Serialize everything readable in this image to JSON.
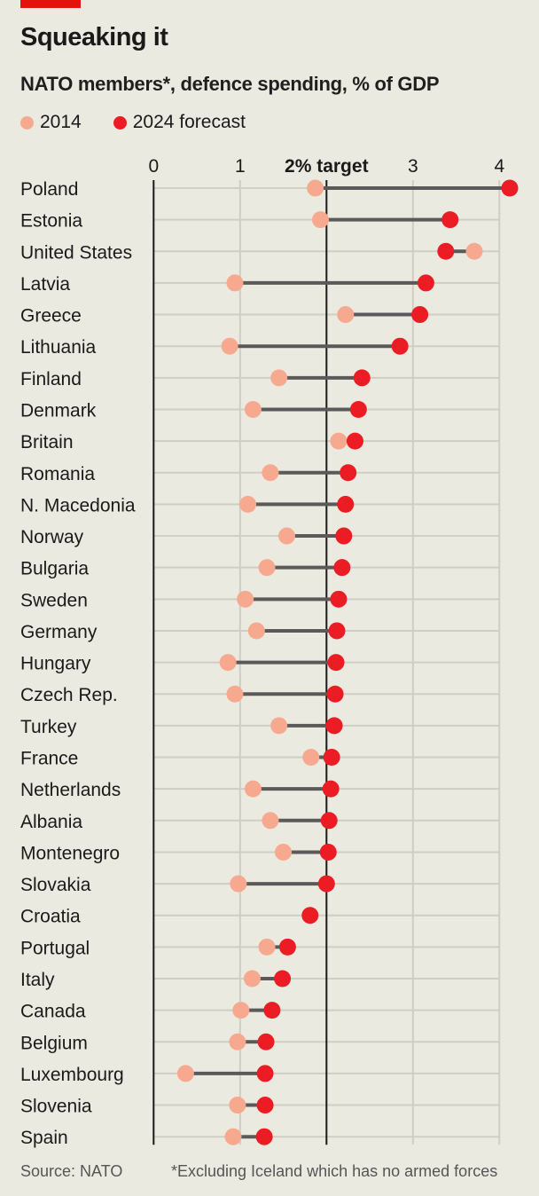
{
  "header": {
    "title": "Squeaking it",
    "subtitle": "NATO members*, defence spending, % of GDP"
  },
  "legend": [
    {
      "label": "2014",
      "color": "#f7a990"
    },
    {
      "label": "2024 forecast",
      "color": "#ec1c24"
    }
  ],
  "footer": {
    "source": "Source: NATO",
    "note": "*Excluding Iceland which has no armed forces"
  },
  "colors": {
    "background": "#ebeae1",
    "accent_bar": "#e3120b",
    "connector": "#5a5a5a",
    "grid": "#cfcdc4",
    "axis": "#1a1a1a"
  },
  "chart_data": {
    "type": "dumbbell",
    "title": "Squeaking it",
    "subtitle": "NATO members*, defence spending, % of GDP",
    "xlabel": "",
    "ylabel": "",
    "xlim": [
      0,
      4.2
    ],
    "x_ticks": [
      {
        "value": 0,
        "label": "0"
      },
      {
        "value": 1,
        "label": "1"
      },
      {
        "value": 2,
        "label": "2% target",
        "bold": true
      },
      {
        "value": 3,
        "label": "3"
      },
      {
        "value": 4,
        "label": "4"
      }
    ],
    "reference_line": {
      "value": 2,
      "label": "2% target"
    },
    "grid": true,
    "legend_position": "top-left",
    "series": [
      {
        "name": "2014",
        "color": "#f7a990"
      },
      {
        "name": "2024 forecast",
        "color": "#ec1c24"
      }
    ],
    "categories": [
      "Poland",
      "Estonia",
      "United States",
      "Latvia",
      "Greece",
      "Lithuania",
      "Finland",
      "Denmark",
      "Britain",
      "Romania",
      "N. Macedonia",
      "Norway",
      "Bulgaria",
      "Sweden",
      "Germany",
      "Hungary",
      "Czech Rep.",
      "Turkey",
      "France",
      "Netherlands",
      "Albania",
      "Montenegro",
      "Slovakia",
      "Croatia",
      "Portugal",
      "Italy",
      "Canada",
      "Belgium",
      "Luxembourg",
      "Slovenia",
      "Spain"
    ],
    "values_2014": [
      1.87,
      1.93,
      3.71,
      0.94,
      2.22,
      0.88,
      1.45,
      1.15,
      2.14,
      1.35,
      1.09,
      1.54,
      1.31,
      1.06,
      1.19,
      0.86,
      0.94,
      1.45,
      1.82,
      1.15,
      1.35,
      1.5,
      0.98,
      null,
      1.31,
      1.14,
      1.01,
      0.97,
      0.37,
      0.97,
      0.92
    ],
    "values_2024": [
      4.12,
      3.43,
      3.38,
      3.15,
      3.08,
      2.85,
      2.41,
      2.37,
      2.33,
      2.25,
      2.22,
      2.2,
      2.18,
      2.14,
      2.12,
      2.11,
      2.1,
      2.09,
      2.06,
      2.05,
      2.03,
      2.02,
      2.0,
      1.81,
      1.55,
      1.49,
      1.37,
      1.3,
      1.29,
      1.29,
      1.28
    ]
  }
}
